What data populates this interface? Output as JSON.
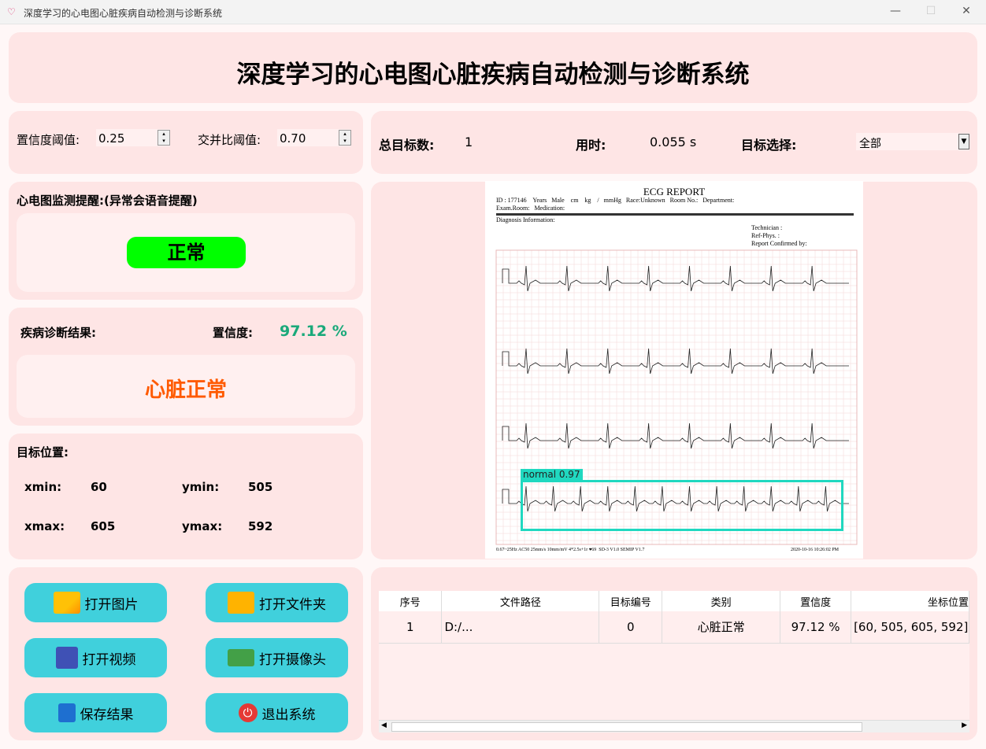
{
  "window": {
    "title": "深度学习的心电图心脏疾病自动检测与诊断系统"
  },
  "header": {
    "title": "深度学习的心电图心脏疾病自动检测与诊断系统"
  },
  "thresholds": {
    "conf_label": "置信度阈值:",
    "conf_value": "0.25",
    "iou_label": "交并比阈值:",
    "iou_value": "0.70"
  },
  "stats": {
    "total_label": "总目标数:",
    "total_value": "1",
    "time_label": "用时:",
    "time_value": "0.055 s",
    "select_label": "目标选择:",
    "select_value": "全部"
  },
  "alert": {
    "title": "心电图监测提醒:(异常会语音提醒)",
    "status": "正常",
    "status_color": "#00ff00"
  },
  "diagnosis": {
    "label": "疾病诊断结果:",
    "conf_label": "置信度:",
    "conf_value": "97.12 %",
    "result": "心脏正常",
    "result_color": "#ff5a00",
    "conf_color": "#1aa97a"
  },
  "position": {
    "title": "目标位置:",
    "xmin_label": "xmin:",
    "xmin": "60",
    "ymin_label": "ymin:",
    "ymin": "505",
    "xmax_label": "xmax:",
    "xmax": "605",
    "ymax_label": "ymax:",
    "ymax": "592"
  },
  "buttons": {
    "open_image": "打开图片",
    "open_folder": "打开文件夹",
    "open_video": "打开视频",
    "open_camera": "打开摄像头",
    "save": "保存结果",
    "exit": "退出系统"
  },
  "ecg": {
    "report_title": "ECG REPORT",
    "header_line1": "ID : 177146    Years   Male    cm    kg    /   mmHg   Race:Unknown   Room No.:   Department:",
    "header_line2": "Exam.Room:   Medication:",
    "diag_info": "Diagnosis Information:",
    "technician": "Technician :",
    "ref_phys": "Ref-Phys. :",
    "confirmed": "Report Confirmed by:",
    "footer_left": "0.67~25Hz AC50 25mm/s 10mm/mV 4*2.5s+1r ♥69  SD-3 V1.0 SEMIP V1.7",
    "footer_right": "2020-10-16  10:26:02 PM",
    "detection_label": "normal  0.97",
    "box_color": "#20d8c0"
  },
  "table": {
    "columns": [
      "序号",
      "文件路径",
      "目标编号",
      "类别",
      "置信度",
      "坐标位置"
    ],
    "rows": [
      [
        "1",
        "D:/...",
        "0",
        "心脏正常",
        "97.12 %",
        "[60, 505, 605, 592]"
      ]
    ]
  }
}
